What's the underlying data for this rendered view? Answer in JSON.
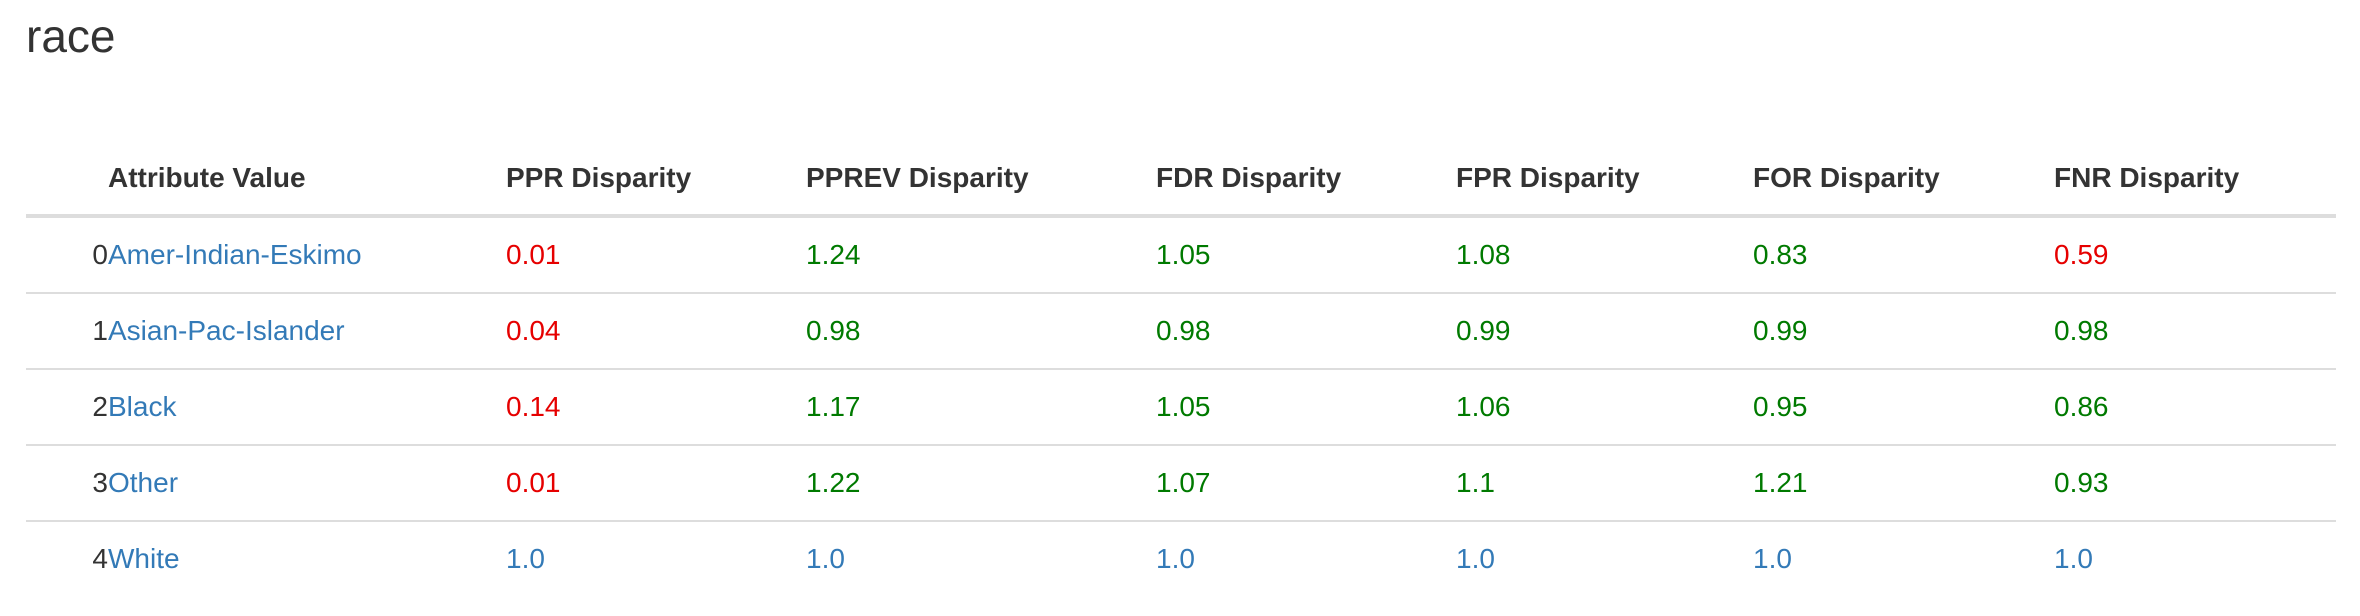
{
  "page": {
    "title": "race"
  },
  "colors": {
    "text": "#333333",
    "link": "#337ab7",
    "below_threshold": "#e60000",
    "within_threshold": "#007a00",
    "reference": "#337ab7",
    "border": "#dddddd"
  },
  "table": {
    "headers": [
      "",
      "Attribute Value",
      "PPR Disparity",
      "PPREV Disparity",
      "FDR Disparity",
      "FPR Disparity",
      "FOR Disparity",
      "FNR Disparity"
    ],
    "rows": [
      {
        "index": "0",
        "attribute": "Amer-Indian-Eskimo",
        "values": [
          {
            "text": "0.01",
            "status": "red"
          },
          {
            "text": "1.24",
            "status": "green"
          },
          {
            "text": "1.05",
            "status": "green"
          },
          {
            "text": "1.08",
            "status": "green"
          },
          {
            "text": "0.83",
            "status": "green"
          },
          {
            "text": "0.59",
            "status": "red"
          }
        ]
      },
      {
        "index": "1",
        "attribute": "Asian-Pac-Islander",
        "values": [
          {
            "text": "0.04",
            "status": "red"
          },
          {
            "text": "0.98",
            "status": "green"
          },
          {
            "text": "0.98",
            "status": "green"
          },
          {
            "text": "0.99",
            "status": "green"
          },
          {
            "text": "0.99",
            "status": "green"
          },
          {
            "text": "0.98",
            "status": "green"
          }
        ]
      },
      {
        "index": "2",
        "attribute": "Black",
        "values": [
          {
            "text": "0.14",
            "status": "red"
          },
          {
            "text": "1.17",
            "status": "green"
          },
          {
            "text": "1.05",
            "status": "green"
          },
          {
            "text": "1.06",
            "status": "green"
          },
          {
            "text": "0.95",
            "status": "green"
          },
          {
            "text": "0.86",
            "status": "green"
          }
        ]
      },
      {
        "index": "3",
        "attribute": "Other",
        "values": [
          {
            "text": "0.01",
            "status": "red"
          },
          {
            "text": "1.22",
            "status": "green"
          },
          {
            "text": "1.07",
            "status": "green"
          },
          {
            "text": "1.1",
            "status": "green"
          },
          {
            "text": "1.21",
            "status": "green"
          },
          {
            "text": "0.93",
            "status": "green"
          }
        ]
      },
      {
        "index": "4",
        "attribute": "White",
        "values": [
          {
            "text": "1.0",
            "status": "blue"
          },
          {
            "text": "1.0",
            "status": "blue"
          },
          {
            "text": "1.0",
            "status": "blue"
          },
          {
            "text": "1.0",
            "status": "blue"
          },
          {
            "text": "1.0",
            "status": "blue"
          },
          {
            "text": "1.0",
            "status": "blue"
          }
        ]
      }
    ]
  }
}
